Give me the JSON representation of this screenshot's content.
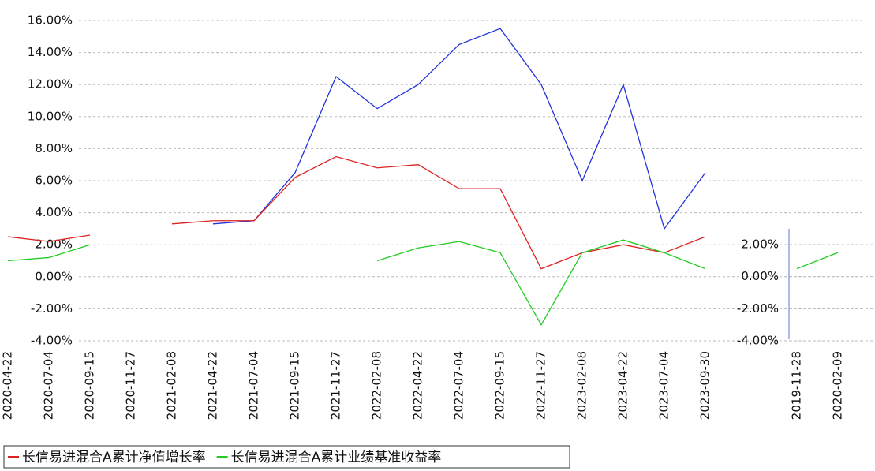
{
  "chart_data": [
    {
      "type": "line",
      "categories": [
        "2020-04-22",
        "2020-07-04",
        "2020-09-15",
        "2020-11-27",
        "2021-02-08",
        "2021-04-22",
        "2021-07-04",
        "2021-09-15",
        "2021-11-27",
        "2022-02-08",
        "2022-04-22",
        "2022-07-04",
        "2022-09-15",
        "2022-11-27",
        "2023-02-08",
        "2023-04-22",
        "2023-07-04",
        "2023-09-30"
      ],
      "series": [
        {
          "color": "#2233dd",
          "values": [
            null,
            null,
            null,
            null,
            null,
            3.3,
            3.5,
            6.5,
            12.5,
            10.5,
            12,
            14.5,
            15.5,
            12,
            6,
            12,
            3,
            6.5
          ]
        },
        {
          "name": "长信易进混合A累计净值增长率",
          "color": "#dd2222",
          "values": [
            2.5,
            2.2,
            2.6,
            null,
            3.3,
            3.5,
            3.5,
            6.2,
            7.5,
            6.8,
            7,
            5.5,
            5.5,
            0.5,
            1.5,
            2,
            1.5,
            2.5
          ]
        },
        {
          "name": "长信易进混合A累计业绩基准收益率",
          "color": "#22cc22",
          "values": [
            1.0,
            1.2,
            2.0,
            null,
            null,
            null,
            null,
            null,
            null,
            1.0,
            1.8,
            2.2,
            1.5,
            -3.0,
            1.5,
            2.3,
            1.5,
            0.5
          ]
        }
      ],
      "ylim": [
        -4,
        16
      ],
      "yticks": [
        {
          "value": 16,
          "label": "16.00%"
        },
        {
          "value": 14,
          "label": "14.00%"
        },
        {
          "value": 12,
          "label": "12.00%"
        },
        {
          "value": 10,
          "label": "10.00%"
        },
        {
          "value": 8,
          "label": "8.00%"
        },
        {
          "value": 6,
          "label": "6.00%"
        },
        {
          "value": 4,
          "label": "4.00%"
        },
        {
          "value": 2,
          "label": "2.00%"
        },
        {
          "value": 0,
          "label": "0.00%"
        },
        {
          "value": -2,
          "label": "-2.00%"
        },
        {
          "value": -4,
          "label": "-4.00%"
        }
      ],
      "grid": true
    },
    {
      "type": "line",
      "categories": [
        "2019-11-28",
        "2020-02-09"
      ],
      "series": [
        {
          "color": "#22cc22",
          "values": [
            0.5,
            1.5
          ]
        }
      ],
      "ylim": [
        -4,
        2
      ],
      "yticks": [
        {
          "value": 2,
          "label": "2.00%"
        },
        {
          "value": 0,
          "label": "0.00%"
        },
        {
          "value": -2,
          "label": "-2.00%"
        },
        {
          "value": -4,
          "label": "-4.00%"
        }
      ],
      "grid": true
    }
  ]
}
